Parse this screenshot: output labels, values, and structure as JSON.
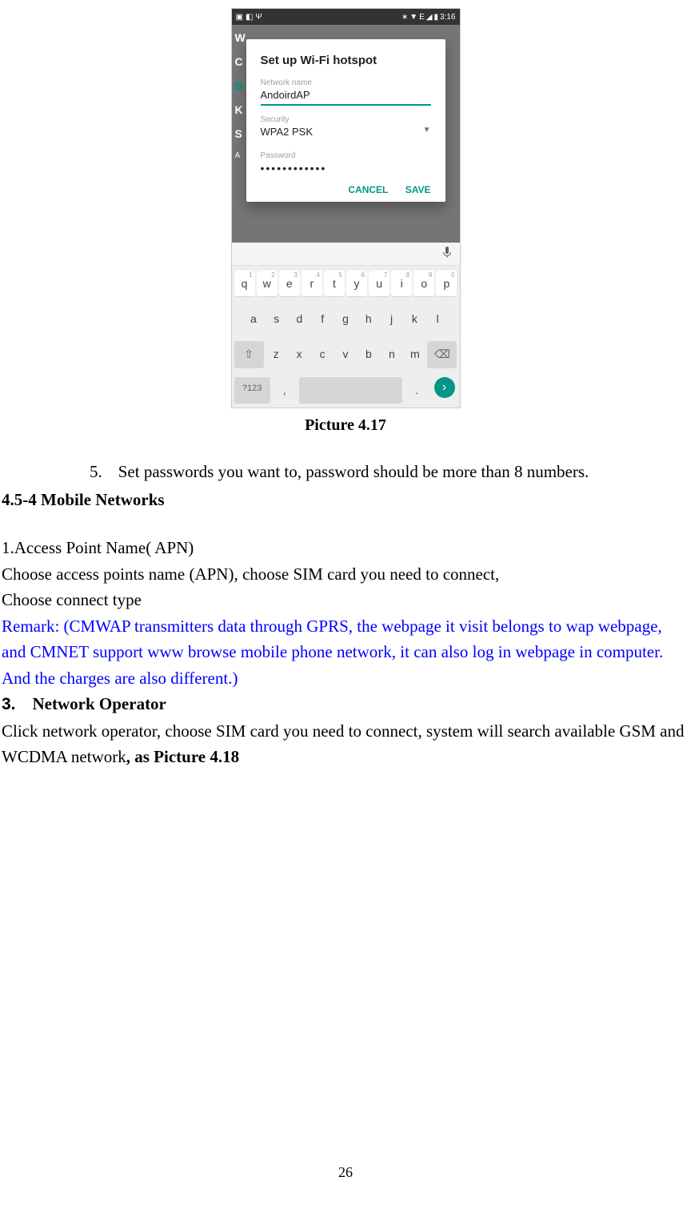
{
  "screenshot": {
    "statusbar": {
      "time": "3:16",
      "signal_text": "E"
    },
    "bg": {
      "l1": "W",
      "l2": "C",
      "l3": "B",
      "l4": "K",
      "l5": "S",
      "l6": "A"
    },
    "dialog": {
      "title": "Set up Wi-Fi hotspot",
      "network_label": "Network name",
      "network_value": "AndoirdAP",
      "security_label": "Security",
      "security_value": "WPA2 PSK",
      "password_label": "Password",
      "password_value": "••••••••••••",
      "cancel": "CANCEL",
      "save": "SAVE"
    },
    "keyboard": {
      "row1": [
        {
          "k": "q",
          "s": "1"
        },
        {
          "k": "w",
          "s": "2"
        },
        {
          "k": "e",
          "s": "3"
        },
        {
          "k": "r",
          "s": "4"
        },
        {
          "k": "t",
          "s": "5"
        },
        {
          "k": "y",
          "s": "6"
        },
        {
          "k": "u",
          "s": "7"
        },
        {
          "k": "i",
          "s": "8"
        },
        {
          "k": "o",
          "s": "9"
        },
        {
          "k": "p",
          "s": "0"
        }
      ],
      "row2": [
        "a",
        "s",
        "d",
        "f",
        "g",
        "h",
        "j",
        "k",
        "l"
      ],
      "row3": [
        "z",
        "x",
        "c",
        "v",
        "b",
        "n",
        "m"
      ],
      "sym": "?123",
      "comma": ",",
      "period": "."
    }
  },
  "caption": "Picture 4.17",
  "step5_num": "5.",
  "step5_text": "Set passwords you want to, password should be more than 8 numbers.",
  "heading_454": "4.5-4 Mobile Networks",
  "apn_heading": "1.Access Point Name( APN)",
  "apn_line1": "Choose access points name (APN), choose SIM card you need to connect,",
  "apn_line2": "Choose connect type",
  "remark": "Remark: (CMWAP transmitters data through GPRS, the webpage it visit belongs to wap webpage, and CMNET support www browse mobile phone network, it can also log in webpage in computer. And the charges are also different.)",
  "op_num": "3.",
  "op_heading": "Network Operator",
  "op_text": "Click network operator, choose SIM card you need to connect, system will search available GSM and WCDMA network",
  "op_bold": ", as Picture 4.18",
  "page_number": "26"
}
